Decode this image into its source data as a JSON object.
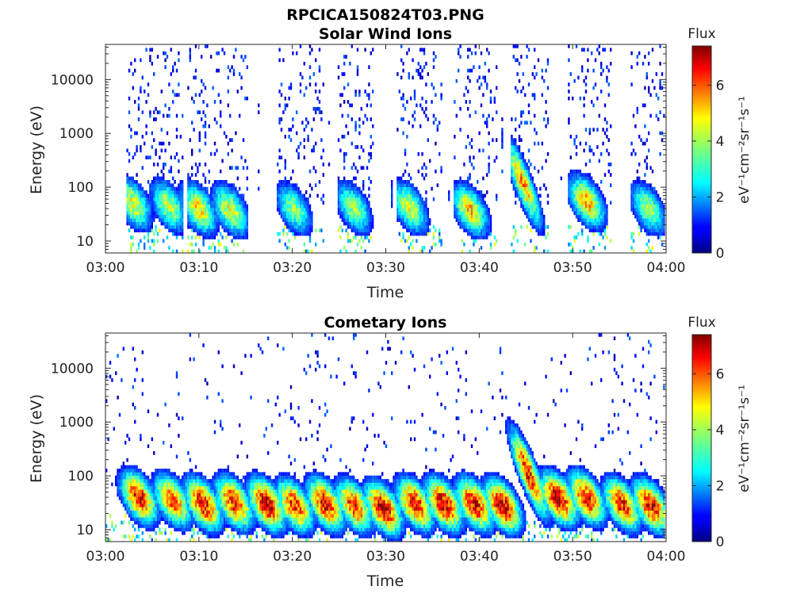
{
  "figure": {
    "title": "RPCICA150824T03.PNG",
    "colormap": "jet"
  },
  "colorbar": {
    "title": "Flux",
    "label": "eV⁻¹cm⁻²sr⁻¹s⁻¹",
    "range": [
      0,
      7.4
    ],
    "ticks": [
      "0",
      "2",
      "4",
      "6"
    ]
  },
  "chart_data": [
    {
      "type": "heatmap",
      "title": "Solar Wind Ions",
      "xlabel": "Time",
      "ylabel": "Energy (eV)",
      "xticks": [
        "03:00",
        "03:10",
        "03:20",
        "03:30",
        "03:40",
        "03:50",
        "04:00"
      ],
      "xlim_minutes": [
        0,
        60
      ],
      "yticks": [
        "10",
        "100",
        "1000",
        "10000"
      ],
      "ylim": [
        6,
        45000
      ],
      "yscale": "log",
      "value_range": [
        0,
        7.4
      ],
      "active_intervals_minutes": [
        [
          2.4,
          8.4
        ],
        [
          8.8,
          15.4
        ],
        [
          18.3,
          23.5
        ],
        [
          24.8,
          28.8
        ],
        [
          31.2,
          36.2
        ],
        [
          37.4,
          42.1
        ],
        [
          43.4,
          47.6
        ],
        [
          49.6,
          54.2
        ],
        [
          56.4,
          59.9
        ]
      ],
      "features": [
        {
          "time": 3.0,
          "energy": 50,
          "flux": 4.5
        },
        {
          "time": 6.8,
          "energy": 45,
          "flux": 4.2
        },
        {
          "time": 10.0,
          "energy": 40,
          "flux": 4.8
        },
        {
          "time": 13.4,
          "energy": 38,
          "flux": 4.6
        },
        {
          "time": 20.2,
          "energy": 40,
          "flux": 3.8
        },
        {
          "time": 26.6,
          "energy": 42,
          "flux": 4.0
        },
        {
          "time": 32.6,
          "energy": 42,
          "flux": 4.4
        },
        {
          "time": 39.1,
          "energy": 38,
          "flux": 5.0
        },
        {
          "time": 44.8,
          "energy": 120,
          "flux": 5.4
        },
        {
          "time": 51.6,
          "energy": 55,
          "flux": 5.2
        },
        {
          "time": 58.2,
          "energy": 40,
          "flux": 4.0
        }
      ]
    },
    {
      "type": "heatmap",
      "title": "Cometary Ions",
      "xlabel": "Time",
      "ylabel": "Energy (eV)",
      "xticks": [
        "03:00",
        "03:10",
        "03:20",
        "03:30",
        "03:40",
        "03:50",
        "04:00"
      ],
      "xlim_minutes": [
        0,
        60
      ],
      "yticks": [
        "10",
        "100",
        "1000",
        "10000"
      ],
      "ylim": [
        6,
        45000
      ],
      "yscale": "log",
      "value_range": [
        0,
        7.4
      ],
      "features": [
        {
          "time": 3.6,
          "energy": 40,
          "flux": 6.5
        },
        {
          "time": 7.2,
          "energy": 35,
          "flux": 6.0
        },
        {
          "time": 10.5,
          "energy": 30,
          "flux": 6.8
        },
        {
          "time": 13.8,
          "energy": 32,
          "flux": 6.6
        },
        {
          "time": 17.3,
          "energy": 30,
          "flux": 7.0
        },
        {
          "time": 20.3,
          "energy": 28,
          "flux": 6.4
        },
        {
          "time": 23.6,
          "energy": 30,
          "flux": 6.8
        },
        {
          "time": 26.7,
          "energy": 28,
          "flux": 6.2
        },
        {
          "time": 29.8,
          "energy": 25,
          "flux": 7.1
        },
        {
          "time": 33.2,
          "energy": 30,
          "flux": 6.7
        },
        {
          "time": 36.3,
          "energy": 30,
          "flux": 7.0
        },
        {
          "time": 39.6,
          "energy": 30,
          "flux": 6.9
        },
        {
          "time": 42.6,
          "energy": 28,
          "flux": 7.1
        },
        {
          "time": 45.4,
          "energy": 110,
          "flux": 6.6
        },
        {
          "time": 48.6,
          "energy": 38,
          "flux": 7.1
        },
        {
          "time": 51.6,
          "energy": 40,
          "flux": 6.6
        },
        {
          "time": 55.4,
          "energy": 30,
          "flux": 6.4
        },
        {
          "time": 58.5,
          "energy": 28,
          "flux": 6.7
        }
      ]
    }
  ]
}
